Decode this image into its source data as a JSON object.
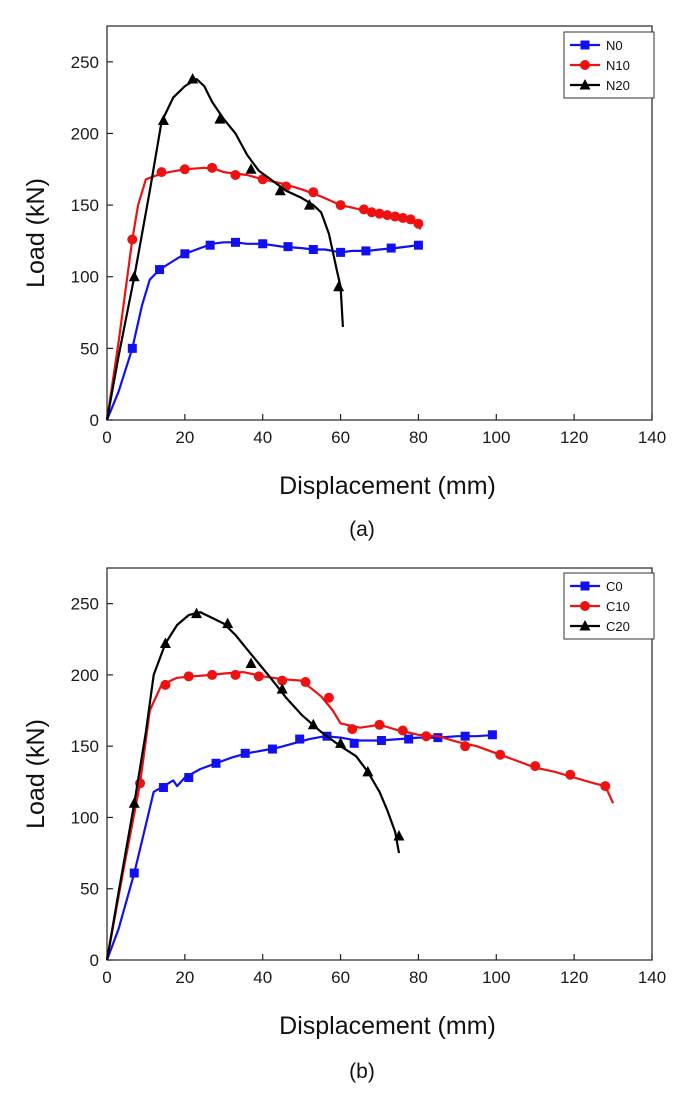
{
  "chart_data": [
    {
      "type": "line",
      "caption": "(a)",
      "xlabel": "Displacement (mm)",
      "ylabel": "Load (kN)",
      "xlim": [
        0,
        140
      ],
      "ylim": [
        0,
        275
      ],
      "xticks": [
        0,
        20,
        40,
        60,
        80,
        100,
        120,
        140
      ],
      "yticks": [
        0,
        50,
        100,
        150,
        200,
        250
      ],
      "grid": false,
      "legend": "top-right",
      "series": [
        {
          "name": "N0",
          "color": "#1010f0",
          "marker": "square",
          "points": [
            [
              0,
              0
            ],
            [
              3,
              20
            ],
            [
              6.5,
              50
            ],
            [
              9,
              80
            ],
            [
              11,
              98
            ],
            [
              13.5,
              105
            ],
            [
              17,
              111
            ],
            [
              20,
              116
            ],
            [
              23,
              119
            ],
            [
              27,
              123
            ],
            [
              30,
              124
            ],
            [
              33,
              124
            ],
            [
              36,
              123
            ],
            [
              40,
              123
            ],
            [
              45,
              121
            ],
            [
              50,
              120
            ],
            [
              53,
              119
            ],
            [
              56,
              119
            ],
            [
              60,
              117
            ],
            [
              63,
              118
            ],
            [
              67,
              118
            ],
            [
              70,
              119
            ],
            [
              74,
              120
            ],
            [
              77,
              121
            ],
            [
              80,
              122
            ]
          ],
          "markers": [
            [
              6.5,
              50
            ],
            [
              13.5,
              105
            ],
            [
              20,
              116
            ],
            [
              26.5,
              122
            ],
            [
              33,
              124
            ],
            [
              40,
              123
            ],
            [
              46.5,
              121
            ],
            [
              53,
              119
            ],
            [
              60,
              117
            ],
            [
              66.5,
              118
            ],
            [
              73,
              120
            ],
            [
              80,
              122
            ]
          ]
        },
        {
          "name": "N10",
          "color": "#ee1111",
          "marker": "circle",
          "points": [
            [
              0,
              0
            ],
            [
              3,
              55
            ],
            [
              6.5,
              126
            ],
            [
              8,
              150
            ],
            [
              10,
              168
            ],
            [
              13,
              171
            ],
            [
              16,
              173
            ],
            [
              20,
              175
            ],
            [
              25,
              176
            ],
            [
              28,
              175
            ],
            [
              30,
              173
            ],
            [
              33,
              172
            ],
            [
              36,
              171
            ],
            [
              40,
              168
            ],
            [
              45,
              165
            ],
            [
              50,
              161
            ],
            [
              55,
              156
            ],
            [
              60,
              150
            ],
            [
              65,
              147
            ],
            [
              70,
              144
            ],
            [
              75,
              142
            ],
            [
              78,
              140
            ],
            [
              80,
              137
            ],
            [
              80.5,
              133
            ]
          ],
          "markers": [
            [
              6.5,
              126
            ],
            [
              14,
              173
            ],
            [
              20,
              175
            ],
            [
              27,
              176
            ],
            [
              33,
              171
            ],
            [
              40,
              168
            ],
            [
              46,
              163
            ],
            [
              53,
              159
            ],
            [
              60,
              150
            ],
            [
              66,
              147
            ],
            [
              68,
              145
            ],
            [
              70,
              144
            ],
            [
              72,
              143
            ],
            [
              74,
              142
            ],
            [
              76,
              141
            ],
            [
              78,
              140
            ],
            [
              80,
              137
            ]
          ]
        },
        {
          "name": "N20",
          "color": "#000000",
          "marker": "triangle",
          "points": [
            [
              0,
              0
            ],
            [
              3,
              45
            ],
            [
              7,
              100
            ],
            [
              11,
              160
            ],
            [
              14,
              208
            ],
            [
              17,
              225
            ],
            [
              20,
              233
            ],
            [
              23,
              238
            ],
            [
              25,
              233
            ],
            [
              27,
              222
            ],
            [
              30,
              210
            ],
            [
              33,
              200
            ],
            [
              36,
              185
            ],
            [
              39,
              174
            ],
            [
              42,
              168
            ],
            [
              46,
              160
            ],
            [
              50,
              155
            ],
            [
              53,
              150
            ],
            [
              55,
              145
            ],
            [
              57,
              130
            ],
            [
              59,
              105
            ],
            [
              60,
              93
            ],
            [
              60.6,
              65
            ]
          ],
          "markers": [
            [
              7,
              100
            ],
            [
              14.5,
              209
            ],
            [
              22,
              238
            ],
            [
              29,
              210
            ],
            [
              37,
              175
            ],
            [
              44.5,
              160
            ],
            [
              52,
              150
            ],
            [
              59.5,
              93
            ]
          ]
        }
      ]
    },
    {
      "type": "line",
      "caption": "(b)",
      "xlabel": "Displacement (mm)",
      "ylabel": "Load (kN)",
      "xlim": [
        0,
        140
      ],
      "ylim": [
        0,
        275
      ],
      "xticks": [
        0,
        20,
        40,
        60,
        80,
        100,
        120,
        140
      ],
      "yticks": [
        0,
        50,
        100,
        150,
        200,
        250
      ],
      "grid": false,
      "legend": "top-right",
      "series": [
        {
          "name": "C0",
          "color": "#1010f0",
          "marker": "square",
          "points": [
            [
              0,
              0
            ],
            [
              3,
              22
            ],
            [
              7,
              61
            ],
            [
              10,
              95
            ],
            [
              12,
              118
            ],
            [
              14,
              121
            ],
            [
              17,
              126
            ],
            [
              18,
              122
            ],
            [
              20,
              128
            ],
            [
              24,
              134
            ],
            [
              28,
              138
            ],
            [
              32,
              142
            ],
            [
              36,
              145
            ],
            [
              40,
              147
            ],
            [
              44,
              149
            ],
            [
              48,
              152
            ],
            [
              52,
              155
            ],
            [
              56,
              157
            ],
            [
              60,
              156
            ],
            [
              64,
              154
            ],
            [
              70,
              154
            ],
            [
              75,
              155
            ],
            [
              80,
              156
            ],
            [
              85,
              156
            ],
            [
              90,
              157
            ],
            [
              95,
              157
            ],
            [
              100,
              158
            ]
          ],
          "markers": [
            [
              7,
              61
            ],
            [
              14.5,
              121
            ],
            [
              21,
              128
            ],
            [
              28,
              138
            ],
            [
              35.5,
              145
            ],
            [
              42.5,
              148
            ],
            [
              49.5,
              155
            ],
            [
              56.5,
              157
            ],
            [
              63.5,
              152
            ],
            [
              70.5,
              154
            ],
            [
              77.5,
              155
            ],
            [
              85,
              156
            ],
            [
              92,
              157
            ],
            [
              99,
              158
            ]
          ]
        },
        {
          "name": "C10",
          "color": "#ee1111",
          "marker": "circle",
          "points": [
            [
              0,
              0
            ],
            [
              4,
              60
            ],
            [
              8.5,
              124
            ],
            [
              11,
              175
            ],
            [
              14,
              193
            ],
            [
              18,
              198
            ],
            [
              22,
              199
            ],
            [
              27,
              200
            ],
            [
              30,
              201
            ],
            [
              35,
              202
            ],
            [
              40,
              199
            ],
            [
              45,
              197
            ],
            [
              50,
              196
            ],
            [
              55,
              185
            ],
            [
              58,
              175
            ],
            [
              60,
              166
            ],
            [
              65,
              163
            ],
            [
              70,
              165
            ],
            [
              75,
              161
            ],
            [
              80,
              158
            ],
            [
              85,
              157
            ],
            [
              90,
              153
            ],
            [
              95,
              150
            ],
            [
              100,
              145
            ],
            [
              105,
              140
            ],
            [
              110,
              135
            ],
            [
              115,
              132
            ],
            [
              120,
              128
            ],
            [
              125,
              124
            ],
            [
              128,
              122
            ],
            [
              130,
              110
            ]
          ],
          "markers": [
            [
              8.5,
              124
            ],
            [
              15,
              193
            ],
            [
              21,
              199
            ],
            [
              27,
              200
            ],
            [
              33,
              200
            ],
            [
              39,
              199
            ],
            [
              45,
              196
            ],
            [
              51,
              195
            ],
            [
              57,
              184
            ],
            [
              63,
              162
            ],
            [
              70,
              165
            ],
            [
              76,
              161
            ],
            [
              82,
              157
            ],
            [
              92,
              150
            ],
            [
              101,
              144
            ],
            [
              110,
              136
            ],
            [
              119,
              130
            ],
            [
              128,
              122
            ]
          ]
        },
        {
          "name": "C20",
          "color": "#000000",
          "marker": "triangle",
          "points": [
            [
              0,
              0
            ],
            [
              3,
              48
            ],
            [
              7,
              110
            ],
            [
              10,
              160
            ],
            [
              12,
              200
            ],
            [
              15,
              222
            ],
            [
              18,
              235
            ],
            [
              21,
              242
            ],
            [
              24,
              244
            ],
            [
              27,
              240
            ],
            [
              30,
              236
            ],
            [
              33,
              228
            ],
            [
              36,
              218
            ],
            [
              39,
              208
            ],
            [
              42,
              198
            ],
            [
              46,
              184
            ],
            [
              50,
              172
            ],
            [
              55,
              160
            ],
            [
              60,
              150
            ],
            [
              64,
              143
            ],
            [
              67,
              132
            ],
            [
              70,
              118
            ],
            [
              72,
              105
            ],
            [
              74,
              90
            ],
            [
              75,
              75
            ]
          ],
          "markers": [
            [
              7,
              110
            ],
            [
              15,
              222
            ],
            [
              23,
              243
            ],
            [
              31,
              236
            ],
            [
              37,
              208
            ],
            [
              45,
              190
            ],
            [
              53,
              165
            ],
            [
              60,
              152
            ],
            [
              67,
              132
            ],
            [
              75,
              87
            ]
          ]
        }
      ]
    }
  ]
}
